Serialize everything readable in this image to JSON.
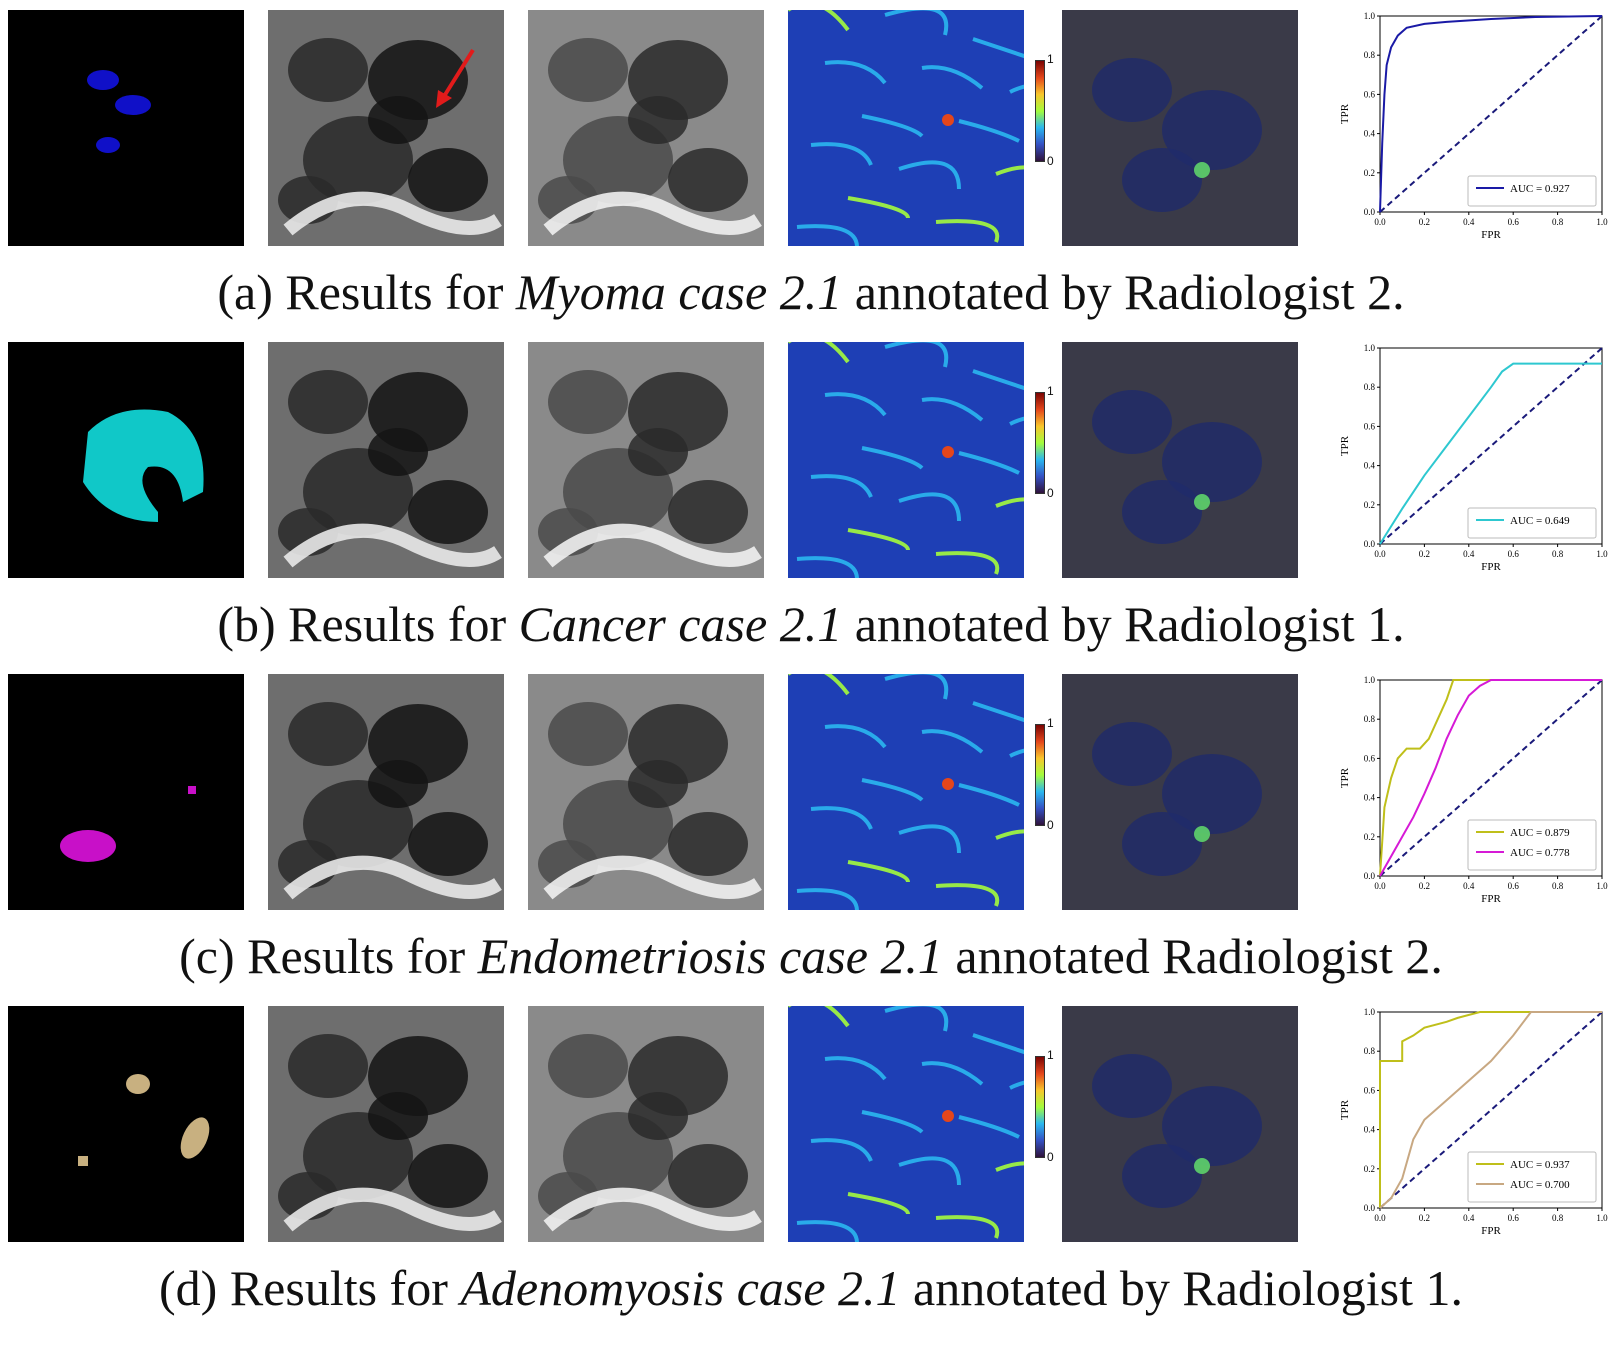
{
  "colorbar": {
    "top_label": "1",
    "bottom_label": "0"
  },
  "rows": [
    {
      "id": "a",
      "caption": {
        "prefix": "(a) Results for ",
        "case": "Myoma case 2.1",
        "suffix": " annotated by Radiologist 2."
      },
      "mask_color": "#1010c8",
      "chart_data": {
        "type": "line",
        "xlabel": "FPR",
        "ylabel": "TPR",
        "xlim": [
          0,
          1
        ],
        "ylim": [
          0,
          1
        ],
        "ticks": [
          "0.0",
          "0.2",
          "0.4",
          "0.6",
          "0.8",
          "1.0"
        ],
        "legend_position": "lower-right",
        "series": [
          {
            "name": "AUC = 0.927",
            "color": "#1a1aa6",
            "x": [
              0,
              0.01,
              0.02,
              0.03,
              0.05,
              0.08,
              0.12,
              0.2,
              0.3,
              0.5,
              0.7,
              1.0
            ],
            "y": [
              0,
              0.35,
              0.6,
              0.75,
              0.84,
              0.9,
              0.94,
              0.96,
              0.97,
              0.985,
              0.995,
              1.0
            ]
          }
        ]
      }
    },
    {
      "id": "b",
      "caption": {
        "prefix": "(b) Results for ",
        "case": "Cancer case 2.1",
        "suffix": " annotated by Radiologist 1."
      },
      "mask_color": "#10c8c8",
      "chart_data": {
        "type": "line",
        "xlabel": "FPR",
        "ylabel": "TPR",
        "xlim": [
          0,
          1
        ],
        "ylim": [
          0,
          1
        ],
        "ticks": [
          "0.0",
          "0.2",
          "0.4",
          "0.6",
          "0.8",
          "1.0"
        ],
        "legend_position": "lower-right",
        "series": [
          {
            "name": "AUC = 0.649",
            "color": "#2ec8d0",
            "x": [
              0,
              0.1,
              0.2,
              0.3,
              0.4,
              0.5,
              0.55,
              0.6,
              0.7,
              1.0
            ],
            "y": [
              0,
              0.18,
              0.35,
              0.5,
              0.65,
              0.8,
              0.88,
              0.92,
              0.92,
              0.92
            ]
          }
        ]
      }
    },
    {
      "id": "c",
      "caption": {
        "prefix": "(c) Results for ",
        "case": "Endometriosis case 2.1",
        "suffix": " annotated Radiologist 2."
      },
      "mask_color": "#c810c8",
      "chart_data": {
        "type": "line",
        "xlabel": "FPR",
        "ylabel": "TPR",
        "xlim": [
          0,
          1
        ],
        "ylim": [
          0,
          1
        ],
        "ticks": [
          "0.0",
          "0.2",
          "0.4",
          "0.6",
          "0.8",
          "1.0"
        ],
        "legend_position": "lower-right",
        "series": [
          {
            "name": "AUC = 0.879",
            "color": "#bfbf1a",
            "x": [
              0,
              0.02,
              0.05,
              0.08,
              0.12,
              0.18,
              0.22,
              0.26,
              0.3,
              0.33,
              1.0
            ],
            "y": [
              0,
              0.35,
              0.5,
              0.6,
              0.65,
              0.65,
              0.7,
              0.8,
              0.9,
              1.0,
              1.0
            ]
          },
          {
            "name": "AUC = 0.778",
            "color": "#d61ad6",
            "x": [
              0,
              0.05,
              0.1,
              0.15,
              0.2,
              0.25,
              0.3,
              0.35,
              0.4,
              0.45,
              0.5,
              1.0
            ],
            "y": [
              0,
              0.1,
              0.2,
              0.3,
              0.42,
              0.55,
              0.7,
              0.82,
              0.92,
              0.97,
              1.0,
              1.0
            ]
          }
        ]
      }
    },
    {
      "id": "d",
      "caption": {
        "prefix": "(d) Results for ",
        "case": "Adenomyosis case 2.1",
        "suffix": " annotated by Radiologist 1."
      },
      "mask_color": "#c8b080",
      "chart_data": {
        "type": "line",
        "xlabel": "FPR",
        "ylabel": "TPR",
        "xlim": [
          0,
          1
        ],
        "ylim": [
          0,
          1
        ],
        "ticks": [
          "0.0",
          "0.2",
          "0.4",
          "0.6",
          "0.8",
          "1.0"
        ],
        "legend_position": "lower-right",
        "series": [
          {
            "name": "AUC = 0.937",
            "color": "#bfbf1a",
            "x": [
              0,
              0.0,
              0.1,
              0.1,
              0.15,
              0.2,
              0.3,
              0.35,
              0.45,
              1.0
            ],
            "y": [
              0,
              0.75,
              0.75,
              0.85,
              0.88,
              0.92,
              0.95,
              0.97,
              1.0,
              1.0
            ]
          },
          {
            "name": "AUC = 0.700",
            "color": "#c8a882",
            "x": [
              0,
              0.05,
              0.1,
              0.15,
              0.2,
              0.3,
              0.4,
              0.5,
              0.6,
              0.68,
              1.0
            ],
            "y": [
              0,
              0.05,
              0.15,
              0.35,
              0.45,
              0.55,
              0.65,
              0.75,
              0.88,
              1.0,
              1.0
            ]
          }
        ]
      }
    }
  ]
}
